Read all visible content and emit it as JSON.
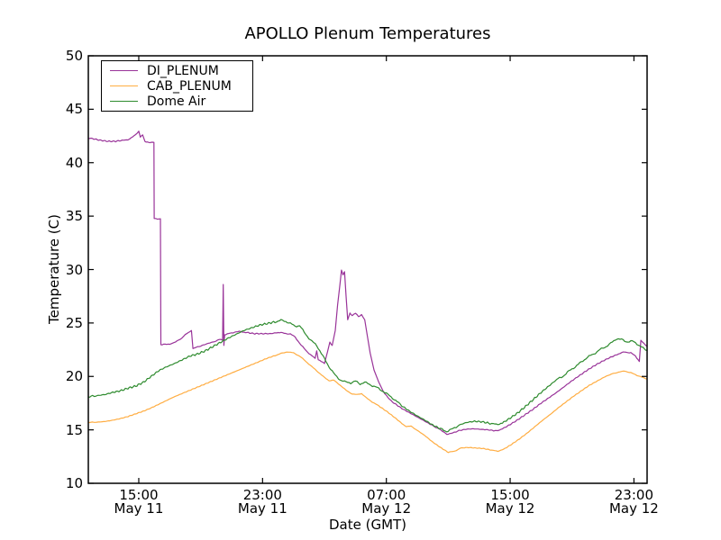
{
  "chart_data": {
    "type": "line",
    "title": "APOLLO Plenum Temperatures",
    "xlabel": "Date (GMT)",
    "ylabel": "Temperature (C)",
    "ylim": [
      10,
      50
    ],
    "xlim_hours_after_may11_noon": [
      -0.26,
      35.85
    ],
    "grid": false,
    "legend_position": "upper left",
    "y_ticks": [
      10,
      15,
      20,
      25,
      30,
      35,
      40,
      45,
      50
    ],
    "x_ticks": [
      {
        "hour": 3,
        "time": "15:00",
        "date": "May 11"
      },
      {
        "hour": 11,
        "time": "23:00",
        "date": "May 11"
      },
      {
        "hour": 19,
        "time": "07:00",
        "date": "May 12"
      },
      {
        "hour": 27,
        "time": "15:00",
        "date": "May 12"
      },
      {
        "hour": 35,
        "time": "23:00",
        "date": "May 12"
      }
    ],
    "series": [
      {
        "name": "DI_PLENUM",
        "color": "#993399",
        "noise": 0.05,
        "points": [
          [
            -0.26,
            42.3
          ],
          [
            0,
            42.25
          ],
          [
            0.5,
            42.1
          ],
          [
            1,
            42.0
          ],
          [
            1.5,
            42.0
          ],
          [
            2,
            42.1
          ],
          [
            2.4,
            42.2
          ],
          [
            2.7,
            42.5
          ],
          [
            3.0,
            42.95
          ],
          [
            3.1,
            42.4
          ],
          [
            3.25,
            42.6
          ],
          [
            3.4,
            42.0
          ],
          [
            3.55,
            41.9
          ],
          [
            3.98,
            41.9
          ],
          [
            4.0,
            34.75
          ],
          [
            4.4,
            34.75
          ],
          [
            4.43,
            23.0
          ],
          [
            4.8,
            23.0
          ],
          [
            5.2,
            23.1
          ],
          [
            5.7,
            23.5
          ],
          [
            6.1,
            24.0
          ],
          [
            6.4,
            24.3
          ],
          [
            6.5,
            22.6
          ],
          [
            6.7,
            22.7
          ],
          [
            7.0,
            22.85
          ],
          [
            7.5,
            23.1
          ],
          [
            8.0,
            23.3
          ],
          [
            8.3,
            23.5
          ],
          [
            8.42,
            23.4
          ],
          [
            8.46,
            28.6
          ],
          [
            8.5,
            22.9
          ],
          [
            8.55,
            23.9
          ],
          [
            8.8,
            24.0
          ],
          [
            9.2,
            24.15
          ],
          [
            9.6,
            24.2
          ],
          [
            10,
            24.1
          ],
          [
            10.5,
            24.0
          ],
          [
            11,
            24.0
          ],
          [
            11.5,
            24.0
          ],
          [
            12,
            24.1
          ],
          [
            12.4,
            24.05
          ],
          [
            12.8,
            23.95
          ],
          [
            13.1,
            23.7
          ],
          [
            13.5,
            22.9
          ],
          [
            13.9,
            22.3
          ],
          [
            14.2,
            21.9
          ],
          [
            14.4,
            21.7
          ],
          [
            14.5,
            22.4
          ],
          [
            14.6,
            21.6
          ],
          [
            14.8,
            21.4
          ],
          [
            15.0,
            21.2
          ],
          [
            15.2,
            22.3
          ],
          [
            15.35,
            23.2
          ],
          [
            15.5,
            22.9
          ],
          [
            15.7,
            24.3
          ],
          [
            15.85,
            26.7
          ],
          [
            16.0,
            28.6
          ],
          [
            16.1,
            29.95
          ],
          [
            16.2,
            29.5
          ],
          [
            16.3,
            29.8
          ],
          [
            16.4,
            27.5
          ],
          [
            16.5,
            25.3
          ],
          [
            16.65,
            25.9
          ],
          [
            16.8,
            25.7
          ],
          [
            17.0,
            25.9
          ],
          [
            17.2,
            25.6
          ],
          [
            17.4,
            25.8
          ],
          [
            17.6,
            25.3
          ],
          [
            17.75,
            24.0
          ],
          [
            17.95,
            22.2
          ],
          [
            18.2,
            20.6
          ],
          [
            18.5,
            19.5
          ],
          [
            18.8,
            18.6
          ],
          [
            19.1,
            18.0
          ],
          [
            19.5,
            17.5
          ],
          [
            20,
            17.0
          ],
          [
            20.5,
            16.6
          ],
          [
            21,
            16.2
          ],
          [
            21.5,
            15.8
          ],
          [
            22,
            15.4
          ],
          [
            22.4,
            15.1
          ],
          [
            22.9,
            14.6
          ],
          [
            23.2,
            14.65
          ],
          [
            23.6,
            14.9
          ],
          [
            24.1,
            15.05
          ],
          [
            24.6,
            15.1
          ],
          [
            25.1,
            15.05
          ],
          [
            25.6,
            15.0
          ],
          [
            26.1,
            14.9
          ],
          [
            26.5,
            15.1
          ],
          [
            27,
            15.5
          ],
          [
            27.5,
            15.95
          ],
          [
            28,
            16.45
          ],
          [
            28.5,
            16.95
          ],
          [
            29,
            17.5
          ],
          [
            29.5,
            18.0
          ],
          [
            30,
            18.5
          ],
          [
            30.5,
            19.05
          ],
          [
            31,
            19.6
          ],
          [
            31.5,
            20.1
          ],
          [
            32,
            20.6
          ],
          [
            32.5,
            21.05
          ],
          [
            33,
            21.45
          ],
          [
            33.5,
            21.8
          ],
          [
            34,
            22.1
          ],
          [
            34.4,
            22.3
          ],
          [
            34.8,
            22.2
          ],
          [
            35.1,
            21.9
          ],
          [
            35.35,
            21.4
          ],
          [
            35.45,
            23.4
          ],
          [
            35.65,
            23.1
          ],
          [
            35.85,
            22.8
          ]
        ]
      },
      {
        "name": "CAB_PLENUM",
        "color": "#FFAD42",
        "noise": 0.03,
        "points": [
          [
            -0.26,
            15.7
          ],
          [
            0.3,
            15.72
          ],
          [
            0.8,
            15.78
          ],
          [
            1.3,
            15.9
          ],
          [
            1.8,
            16.05
          ],
          [
            2.3,
            16.25
          ],
          [
            2.8,
            16.5
          ],
          [
            3.3,
            16.75
          ],
          [
            3.8,
            17.05
          ],
          [
            4.3,
            17.4
          ],
          [
            4.8,
            17.75
          ],
          [
            5.3,
            18.1
          ],
          [
            5.8,
            18.4
          ],
          [
            6.3,
            18.7
          ],
          [
            6.8,
            19.0
          ],
          [
            7.3,
            19.3
          ],
          [
            7.8,
            19.6
          ],
          [
            8.3,
            19.9
          ],
          [
            8.8,
            20.2
          ],
          [
            9.3,
            20.5
          ],
          [
            9.8,
            20.8
          ],
          [
            10.3,
            21.1
          ],
          [
            10.8,
            21.4
          ],
          [
            11.3,
            21.7
          ],
          [
            11.8,
            21.95
          ],
          [
            12.2,
            22.15
          ],
          [
            12.6,
            22.3
          ],
          [
            13.0,
            22.2
          ],
          [
            13.4,
            21.9
          ],
          [
            13.8,
            21.4
          ],
          [
            14.2,
            20.9
          ],
          [
            14.6,
            20.4
          ],
          [
            15.0,
            19.9
          ],
          [
            15.3,
            19.6
          ],
          [
            15.6,
            19.65
          ],
          [
            16.0,
            19.2
          ],
          [
            16.4,
            18.7
          ],
          [
            16.8,
            18.35
          ],
          [
            17.1,
            18.3
          ],
          [
            17.4,
            18.4
          ],
          [
            17.7,
            18.0
          ],
          [
            18.1,
            17.6
          ],
          [
            18.5,
            17.25
          ],
          [
            19.0,
            16.75
          ],
          [
            19.5,
            16.2
          ],
          [
            20.0,
            15.6
          ],
          [
            20.3,
            15.3
          ],
          [
            20.6,
            15.35
          ],
          [
            21.0,
            14.95
          ],
          [
            21.5,
            14.45
          ],
          [
            22.0,
            13.85
          ],
          [
            22.5,
            13.35
          ],
          [
            23.0,
            12.9
          ],
          [
            23.4,
            13.0
          ],
          [
            23.8,
            13.3
          ],
          [
            24.3,
            13.35
          ],
          [
            24.8,
            13.3
          ],
          [
            25.3,
            13.25
          ],
          [
            25.8,
            13.1
          ],
          [
            26.2,
            13.0
          ],
          [
            26.6,
            13.2
          ],
          [
            27.1,
            13.65
          ],
          [
            27.6,
            14.15
          ],
          [
            28.1,
            14.7
          ],
          [
            28.6,
            15.3
          ],
          [
            29.1,
            15.9
          ],
          [
            29.6,
            16.45
          ],
          [
            30.1,
            17.05
          ],
          [
            30.6,
            17.6
          ],
          [
            31.1,
            18.15
          ],
          [
            31.6,
            18.65
          ],
          [
            32.1,
            19.15
          ],
          [
            32.6,
            19.55
          ],
          [
            33.1,
            19.95
          ],
          [
            33.6,
            20.25
          ],
          [
            34.0,
            20.4
          ],
          [
            34.4,
            20.5
          ],
          [
            34.8,
            20.35
          ],
          [
            35.2,
            20.1
          ],
          [
            35.5,
            19.95
          ],
          [
            35.85,
            19.75
          ]
        ]
      },
      {
        "name": "Dome Air",
        "color": "#2E8B2E",
        "noise": 0.09,
        "points": [
          [
            -0.26,
            18.1
          ],
          [
            0.3,
            18.2
          ],
          [
            0.8,
            18.3
          ],
          [
            1.3,
            18.5
          ],
          [
            1.8,
            18.65
          ],
          [
            2.3,
            18.9
          ],
          [
            2.8,
            19.1
          ],
          [
            3.3,
            19.45
          ],
          [
            3.8,
            20.0
          ],
          [
            4.3,
            20.55
          ],
          [
            4.8,
            20.9
          ],
          [
            5.3,
            21.2
          ],
          [
            5.8,
            21.55
          ],
          [
            6.3,
            21.9
          ],
          [
            6.8,
            22.1
          ],
          [
            7.3,
            22.4
          ],
          [
            7.8,
            22.8
          ],
          [
            8.3,
            23.2
          ],
          [
            8.8,
            23.6
          ],
          [
            9.3,
            23.95
          ],
          [
            9.8,
            24.3
          ],
          [
            10.3,
            24.55
          ],
          [
            10.8,
            24.8
          ],
          [
            11.3,
            24.95
          ],
          [
            11.8,
            25.1
          ],
          [
            12.2,
            25.25
          ],
          [
            12.5,
            25.15
          ],
          [
            12.8,
            24.95
          ],
          [
            13.1,
            24.7
          ],
          [
            13.4,
            24.75
          ],
          [
            13.7,
            24.1
          ],
          [
            14.1,
            23.4
          ],
          [
            14.5,
            22.9
          ],
          [
            14.9,
            21.9
          ],
          [
            15.3,
            20.9
          ],
          [
            15.7,
            20.1
          ],
          [
            16.0,
            19.7
          ],
          [
            16.3,
            19.5
          ],
          [
            16.7,
            19.4
          ],
          [
            17.0,
            19.55
          ],
          [
            17.3,
            19.3
          ],
          [
            17.6,
            19.45
          ],
          [
            18.0,
            19.2
          ],
          [
            18.4,
            18.95
          ],
          [
            18.8,
            18.6
          ],
          [
            19.2,
            18.2
          ],
          [
            19.6,
            17.75
          ],
          [
            20.0,
            17.25
          ],
          [
            20.5,
            16.75
          ],
          [
            21.0,
            16.3
          ],
          [
            21.5,
            15.9
          ],
          [
            22.0,
            15.45
          ],
          [
            22.5,
            15.1
          ],
          [
            22.9,
            14.85
          ],
          [
            23.3,
            15.1
          ],
          [
            23.7,
            15.45
          ],
          [
            24.2,
            15.7
          ],
          [
            24.7,
            15.8
          ],
          [
            25.2,
            15.75
          ],
          [
            25.7,
            15.6
          ],
          [
            26.1,
            15.5
          ],
          [
            26.5,
            15.65
          ],
          [
            27.0,
            16.1
          ],
          [
            27.5,
            16.6
          ],
          [
            28.0,
            17.2
          ],
          [
            28.5,
            17.85
          ],
          [
            29.0,
            18.5
          ],
          [
            29.5,
            19.1
          ],
          [
            30.0,
            19.7
          ],
          [
            30.4,
            20.0
          ],
          [
            30.8,
            20.5
          ],
          [
            31.2,
            20.9
          ],
          [
            31.6,
            21.35
          ],
          [
            32.0,
            21.8
          ],
          [
            32.4,
            22.1
          ],
          [
            32.8,
            22.5
          ],
          [
            33.2,
            22.8
          ],
          [
            33.6,
            23.2
          ],
          [
            33.9,
            23.55
          ],
          [
            34.2,
            23.45
          ],
          [
            34.5,
            23.25
          ],
          [
            34.9,
            23.3
          ],
          [
            35.2,
            23.05
          ],
          [
            35.5,
            22.75
          ],
          [
            35.85,
            22.45
          ]
        ]
      }
    ]
  }
}
